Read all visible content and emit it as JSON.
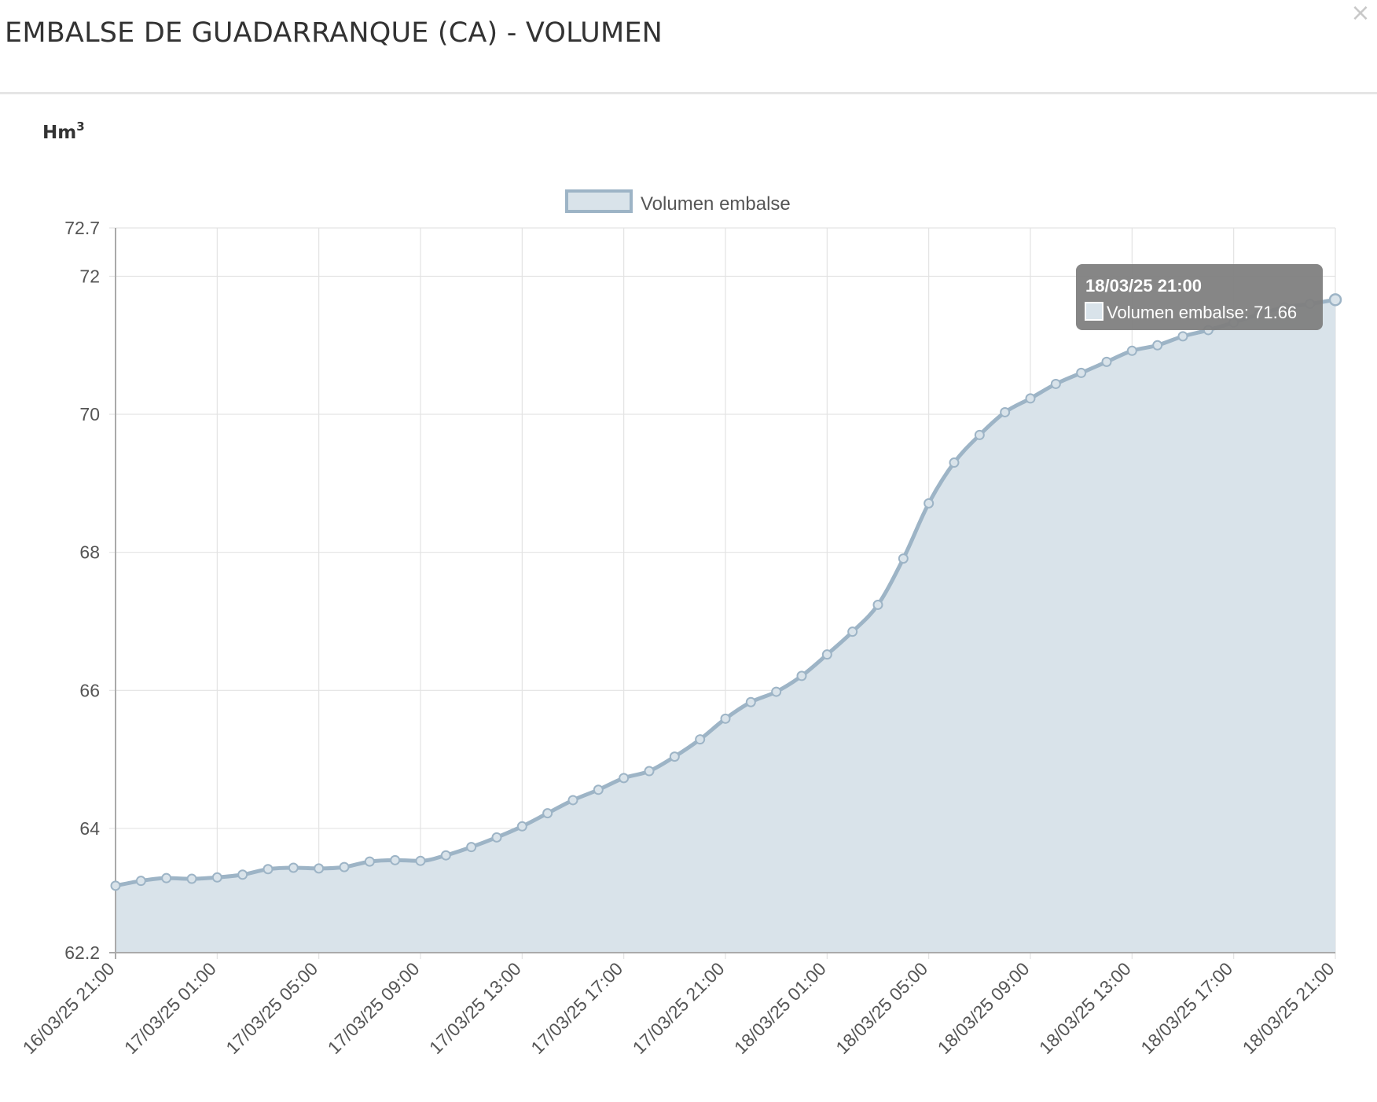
{
  "modal": {
    "title": "EMBALSE DE GUADARRANQUE (CA) - VOLUMEN",
    "close_label": "×"
  },
  "unit": {
    "base": "Hm",
    "exponent": "3"
  },
  "colors": {
    "line": "#9db4c6",
    "fill": "#d9e3ea",
    "grid": "#e3e3e3",
    "axis": "#aaaaaa",
    "tooltip_bg": "#7f7f7f",
    "tooltip_text": "#ffffff"
  },
  "tooltip": {
    "title": "18/03/25 21:00",
    "label": "Volumen embalse: 71.66"
  },
  "chart_data": {
    "type": "area",
    "title": "",
    "ylabel": "Hm3",
    "ylim": [
      62.2,
      72.7
    ],
    "yticks": [
      62.2,
      64,
      66,
      68,
      70,
      72,
      72.7
    ],
    "x_tick_labels": [
      "16/03/25 21:00",
      "17/03/25 01:00",
      "17/03/25 05:00",
      "17/03/25 09:00",
      "17/03/25 13:00",
      "17/03/25 17:00",
      "17/03/25 21:00",
      "18/03/25 01:00",
      "18/03/25 05:00",
      "18/03/25 09:00",
      "18/03/25 13:00",
      "18/03/25 17:00",
      "18/03/25 21:00"
    ],
    "x": [
      "16/03/25 21:00",
      "16/03/25 22:00",
      "16/03/25 23:00",
      "17/03/25 00:00",
      "17/03/25 01:00",
      "17/03/25 02:00",
      "17/03/25 03:00",
      "17/03/25 04:00",
      "17/03/25 05:00",
      "17/03/25 06:00",
      "17/03/25 07:00",
      "17/03/25 08:00",
      "17/03/25 09:00",
      "17/03/25 10:00",
      "17/03/25 11:00",
      "17/03/25 12:00",
      "17/03/25 13:00",
      "17/03/25 14:00",
      "17/03/25 15:00",
      "17/03/25 16:00",
      "17/03/25 17:00",
      "17/03/25 18:00",
      "17/03/25 19:00",
      "17/03/25 20:00",
      "17/03/25 21:00",
      "17/03/25 22:00",
      "17/03/25 23:00",
      "18/03/25 00:00",
      "18/03/25 01:00",
      "18/03/25 02:00",
      "18/03/25 03:00",
      "18/03/25 04:00",
      "18/03/25 05:00",
      "18/03/25 06:00",
      "18/03/25 07:00",
      "18/03/25 08:00",
      "18/03/25 09:00",
      "18/03/25 10:00",
      "18/03/25 11:00",
      "18/03/25 12:00",
      "18/03/25 13:00",
      "18/03/25 14:00",
      "18/03/25 15:00",
      "18/03/25 16:00",
      "18/03/25 17:00",
      "18/03/25 18:00",
      "18/03/25 19:00",
      "18/03/25 20:00",
      "18/03/25 21:00"
    ],
    "series": [
      {
        "name": "Volumen embalse",
        "values": [
          63.17,
          63.24,
          63.28,
          63.27,
          63.29,
          63.33,
          63.41,
          63.43,
          63.42,
          63.44,
          63.52,
          63.54,
          63.53,
          63.61,
          63.73,
          63.87,
          64.03,
          64.22,
          64.41,
          64.56,
          64.73,
          64.83,
          65.04,
          65.29,
          65.59,
          65.83,
          65.98,
          66.21,
          66.52,
          66.85,
          67.24,
          67.91,
          68.71,
          69.3,
          69.7,
          70.03,
          70.23,
          70.44,
          70.6,
          70.76,
          70.92,
          71.0,
          71.13,
          71.22,
          71.33,
          71.45,
          71.55,
          71.6,
          71.66
        ]
      }
    ],
    "legend": "top-center",
    "grid": true,
    "highlighted_index": 48
  }
}
